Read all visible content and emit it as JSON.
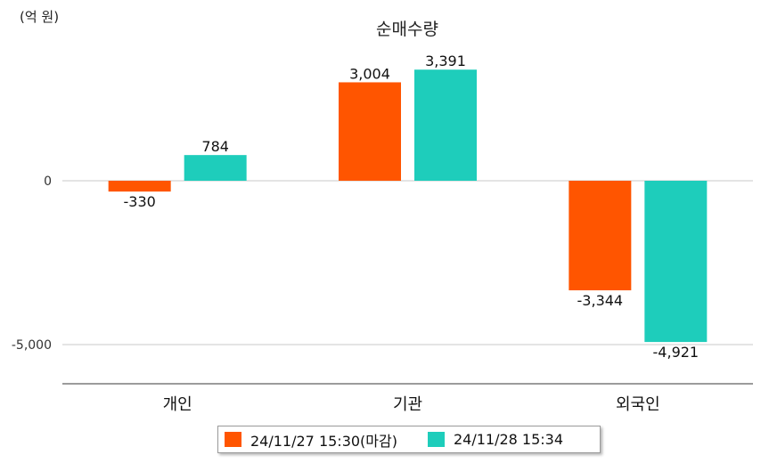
{
  "chart_data": {
    "type": "bar",
    "title": "순매수량",
    "unit_label": "(억 원)",
    "categories": [
      "개인",
      "기관",
      "외국인"
    ],
    "series": [
      {
        "name": "24/11/27 15:30(마감)",
        "color": "#ff5500",
        "values": [
          -330,
          3004,
          -3344
        ]
      },
      {
        "name": "24/11/28 15:34",
        "color": "#1ecdbb",
        "values": [
          784,
          3391,
          -4921
        ]
      }
    ],
    "y_ticks": [
      0,
      -5000
    ],
    "ylim": [
      -6100,
      3600
    ],
    "grid": true,
    "legend_position": "bottom"
  }
}
